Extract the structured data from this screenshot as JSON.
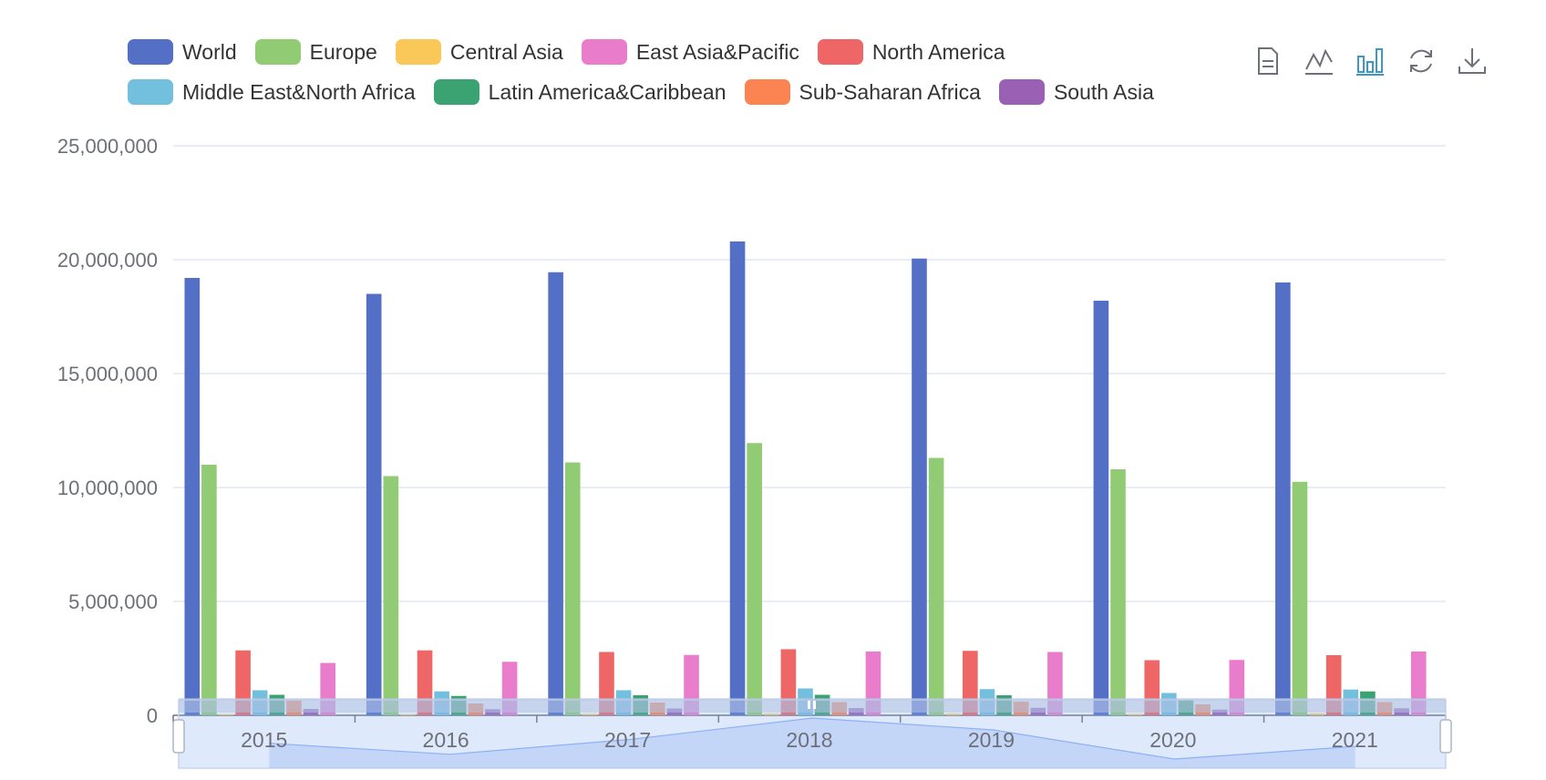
{
  "chart_data": {
    "type": "bar",
    "categories": [
      "2015",
      "2016",
      "2017",
      "2018",
      "2019",
      "2020",
      "2021"
    ],
    "ylim": [
      0,
      25000000
    ],
    "yticks": [
      "0",
      "5,000,000",
      "10,000,000",
      "15,000,000",
      "20,000,000",
      "25,000,000"
    ],
    "series": [
      {
        "name": "World",
        "color": "#5470c6",
        "values": [
          19200000,
          18500000,
          19450000,
          20800000,
          20050000,
          18200000,
          19000000
        ]
      },
      {
        "name": "Europe",
        "color": "#91cc75",
        "values": [
          11000000,
          10500000,
          11100000,
          11950000,
          11300000,
          10800000,
          10250000
        ]
      },
      {
        "name": "Central Asia",
        "color": "#fac858",
        "values": [
          50000,
          50000,
          60000,
          70000,
          70000,
          60000,
          80000
        ]
      },
      {
        "name": "North America",
        "color": "#ee6666",
        "values": [
          2850000,
          2850000,
          2780000,
          2900000,
          2830000,
          2420000,
          2640000
        ]
      },
      {
        "name": "Middle East&North Africa",
        "color": "#73c0de",
        "values": [
          1100000,
          1050000,
          1100000,
          1180000,
          1150000,
          980000,
          1130000
        ]
      },
      {
        "name": "Latin America&Caribbean",
        "color": "#3ba272",
        "values": [
          900000,
          850000,
          880000,
          900000,
          880000,
          680000,
          1050000
        ]
      },
      {
        "name": "Sub-Saharan Africa",
        "color": "#fc8452",
        "values": [
          650000,
          520000,
          560000,
          580000,
          600000,
          480000,
          580000
        ]
      },
      {
        "name": "South Asia",
        "color": "#9a60b4",
        "values": [
          280000,
          270000,
          300000,
          320000,
          330000,
          250000,
          310000
        ]
      },
      {
        "name": "East Asia&Pacific",
        "color": "#ea7ccc",
        "values": [
          2300000,
          2350000,
          2650000,
          2800000,
          2780000,
          2430000,
          2800000
        ]
      }
    ],
    "legend": [
      {
        "name": "World",
        "color": "#5470c6"
      },
      {
        "name": "Europe",
        "color": "#91cc75"
      },
      {
        "name": "Central Asia",
        "color": "#fac858"
      },
      {
        "name": "East Asia&Pacific",
        "color": "#ea7ccc"
      },
      {
        "name": "North America",
        "color": "#ee6666"
      },
      {
        "name": "Middle East&North Africa",
        "color": "#73c0de"
      },
      {
        "name": "Latin America&Caribbean",
        "color": "#3ba272"
      },
      {
        "name": "Sub-Saharan Africa",
        "color": "#fc8452"
      },
      {
        "name": "South Asia",
        "color": "#9a60b4"
      }
    ],
    "legend_position": "top",
    "toolbox": [
      "data-view-icon",
      "line-chart-icon",
      "bar-chart-icon",
      "restore-icon",
      "download-icon"
    ],
    "toolbox_active": "bar-chart-icon",
    "datazoom": {
      "start": 0,
      "end": 100
    }
  }
}
